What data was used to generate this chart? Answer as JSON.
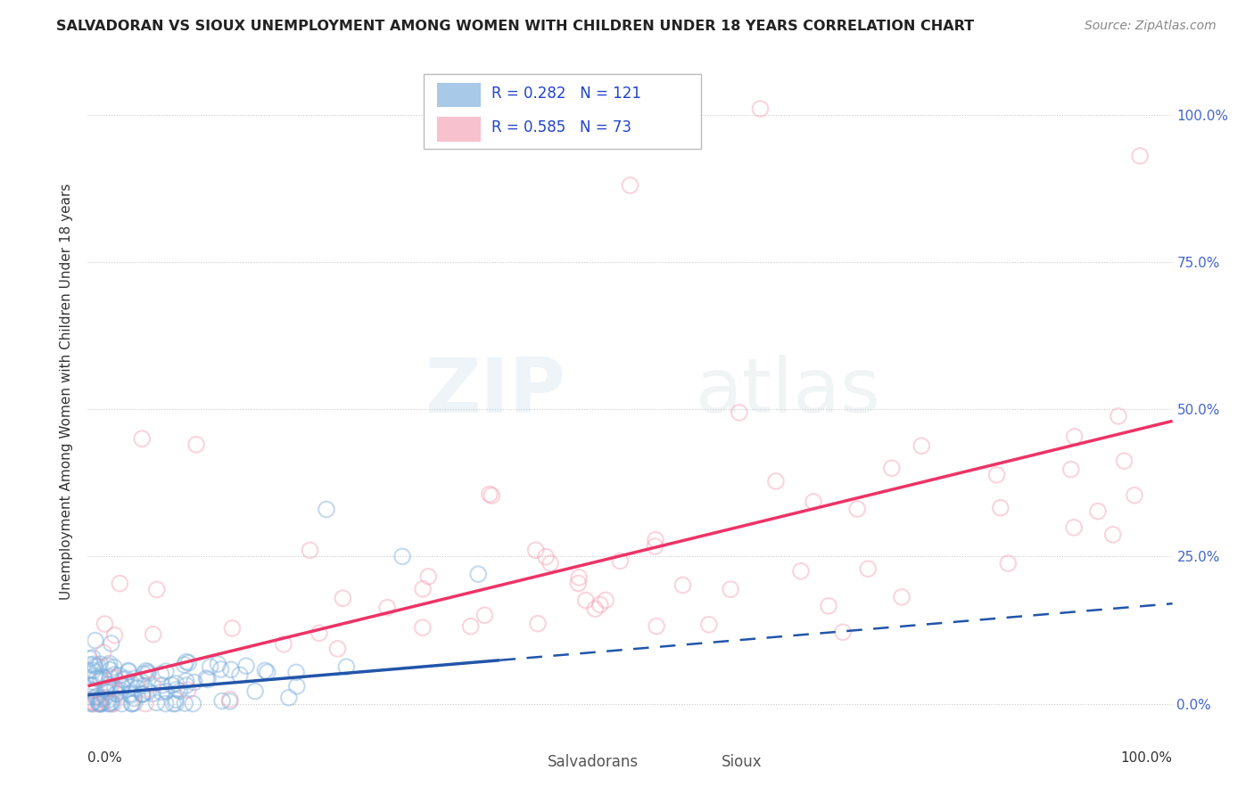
{
  "title": "SALVADORAN VS SIOUX UNEMPLOYMENT AMONG WOMEN WITH CHILDREN UNDER 18 YEARS CORRELATION CHART",
  "source": "Source: ZipAtlas.com",
  "ylabel": "Unemployment Among Women with Children Under 18 years",
  "ytick_labels": [
    "0.0%",
    "25.0%",
    "50.0%",
    "75.0%",
    "100.0%"
  ],
  "ytick_values": [
    0.0,
    0.25,
    0.5,
    0.75,
    1.0
  ],
  "salvadoran_R": 0.282,
  "salvadoran_N": 121,
  "sioux_R": 0.585,
  "sioux_N": 73,
  "salvadoran_color": "#7AADDC",
  "sioux_color": "#F4A0B5",
  "salvadoran_line_color": "#2255AA",
  "sioux_line_color": "#EE3366",
  "background_color": "#FFFFFF",
  "title_fontsize": 11.5,
  "source_fontsize": 10,
  "tick_fontsize": 11,
  "legend_fontsize": 12,
  "axis_label_fontsize": 11,
  "marker_size": 160,
  "marker_alpha": 0.45,
  "marker_lw": 1.5
}
